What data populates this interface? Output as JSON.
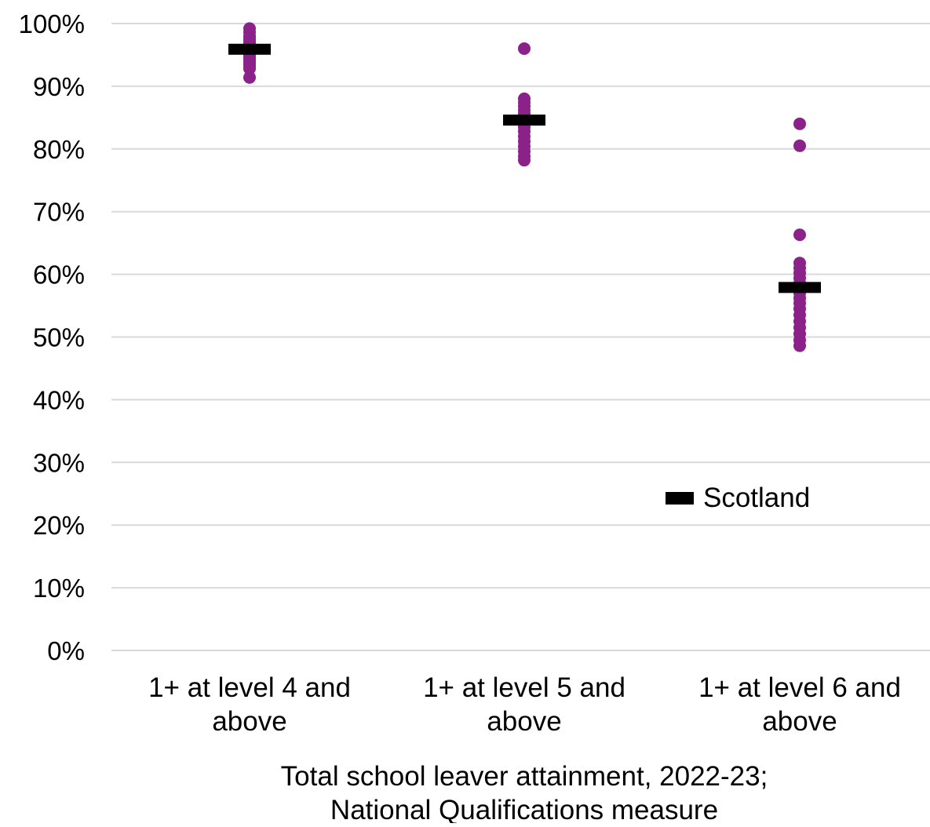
{
  "chart_data": {
    "type": "scatter",
    "title": "",
    "xlabel": [
      "Total school leaver attainment, 2022-23;",
      "National Qualifications measure"
    ],
    "ylabel": "",
    "ylim": [
      0,
      100
    ],
    "y_tick_labels": [
      "0%",
      "10%",
      "20%",
      "30%",
      "40%",
      "50%",
      "60%",
      "70%",
      "80%",
      "90%",
      "100%"
    ],
    "y_tick_values": [
      0,
      10,
      20,
      30,
      40,
      50,
      60,
      70,
      80,
      90,
      100
    ],
    "grid": true,
    "categories": [
      [
        "1+ at level 4 and",
        "above"
      ],
      [
        "1+ at level 5 and",
        "above"
      ],
      [
        "1+ at level 6 and",
        "above"
      ]
    ],
    "series": [
      {
        "values": [
          [
            99.2,
            98.6,
            98.0,
            97.6,
            97.2,
            96.8,
            96.4,
            96.0,
            95.6,
            95.2,
            94.8,
            94.4,
            94.0,
            93.6,
            93.2,
            92.8,
            91.4
          ],
          [
            96.0,
            88.0,
            87.4,
            86.8,
            86.2,
            85.6,
            85.0,
            84.5,
            84.0,
            83.5,
            82.8,
            82.0,
            81.2,
            80.4,
            79.6,
            78.8,
            78.2
          ],
          [
            84.0,
            80.5,
            66.3,
            61.8,
            61.0,
            60.2,
            59.4,
            58.6,
            57.8,
            57.0,
            56.2,
            55.4,
            54.5,
            53.5,
            52.5,
            51.5,
            50.5,
            49.5,
            48.6
          ]
        ],
        "color": "#8B2289"
      },
      {
        "name": "Scotland",
        "type": "marker-dash",
        "values": [
          95.9,
          84.6,
          57.9
        ],
        "color": "#000000"
      }
    ],
    "legend": {
      "placement": "lower-right inside plot",
      "label": "Scotland"
    }
  }
}
